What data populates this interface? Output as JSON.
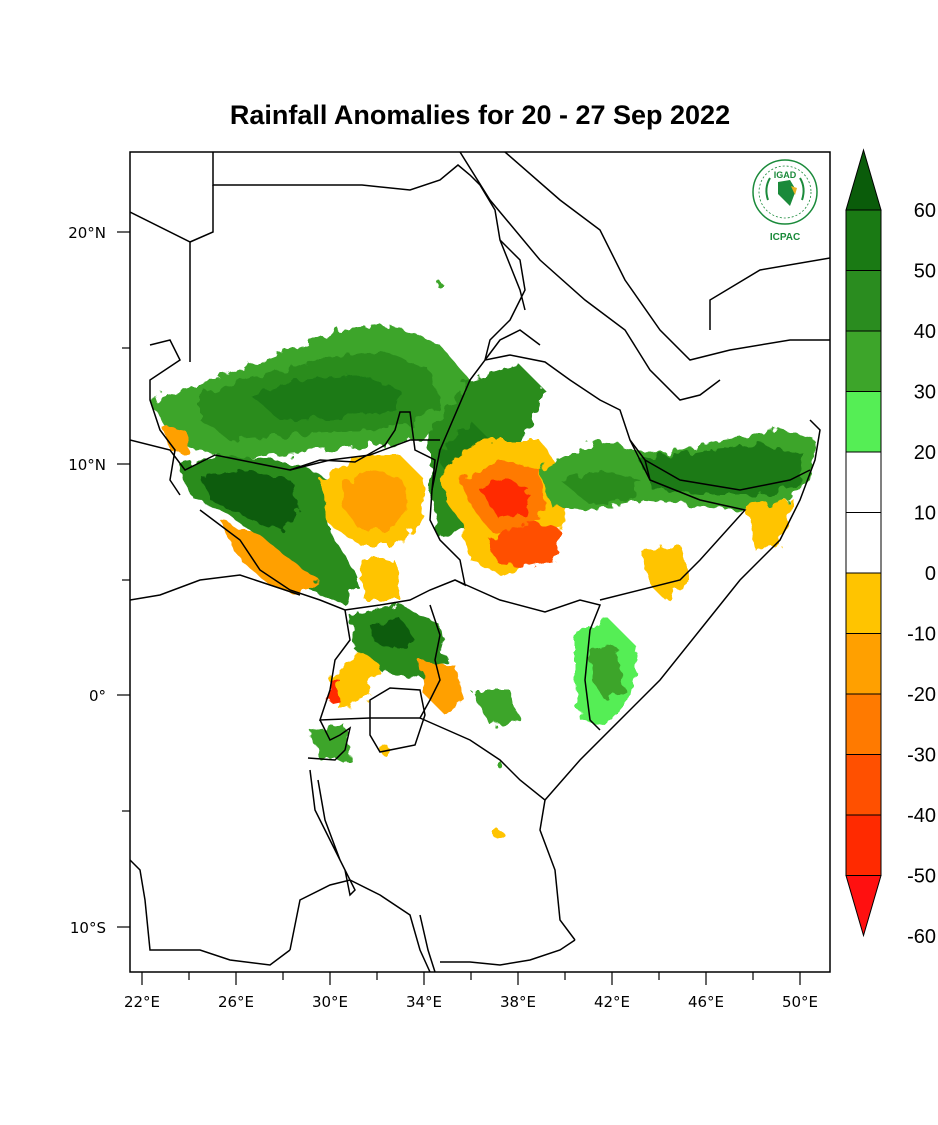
{
  "map": {
    "title": "Rainfall Anomalies for 20 - 27 Sep 2022",
    "lon_ticks": [
      "22°E",
      "26°E",
      "30°E",
      "34°E",
      "38°E",
      "42°E",
      "46°E",
      "50°E"
    ],
    "lat_ticks": [
      "20°N",
      "10°N",
      "0°",
      "10°S"
    ],
    "colorbar": {
      "labels": [
        "60",
        "50",
        "40",
        "30",
        "20",
        "10",
        "0",
        "-10",
        "-20",
        "-30",
        "-40",
        "-50",
        "-60"
      ],
      "colors": [
        "#0a5c0a",
        "#1a7a14",
        "#2a8c1f",
        "#3da52a",
        "#55ee55",
        "#ffffff",
        "#ffffff",
        "#ffc400",
        "#ffa000",
        "#ff7a00",
        "#ff5000",
        "#ff2a00",
        "#ff1010"
      ]
    },
    "logo": {
      "top_text": "IGAD",
      "bottom_text": "ICPAC",
      "color": "#1a8a3a"
    }
  }
}
